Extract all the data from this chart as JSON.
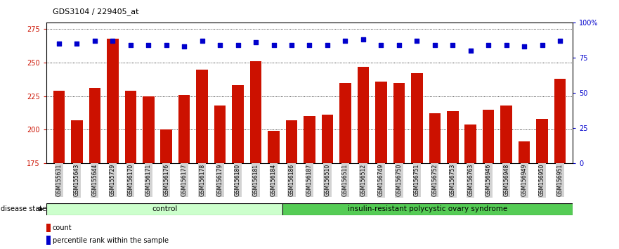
{
  "title": "GDS3104 / 229405_at",
  "samples": [
    "GSM155631",
    "GSM155643",
    "GSM155644",
    "GSM155729",
    "GSM156170",
    "GSM156171",
    "GSM156176",
    "GSM156177",
    "GSM156178",
    "GSM156179",
    "GSM156180",
    "GSM156181",
    "GSM156184",
    "GSM156186",
    "GSM156187",
    "GSM156510",
    "GSM156511",
    "GSM156512",
    "GSM156749",
    "GSM156750",
    "GSM156751",
    "GSM156752",
    "GSM156753",
    "GSM156763",
    "GSM156946",
    "GSM156948",
    "GSM156949",
    "GSM156950",
    "GSM156951"
  ],
  "counts": [
    229,
    207,
    231,
    268,
    229,
    225,
    200,
    226,
    245,
    218,
    233,
    251,
    199,
    207,
    210,
    211,
    235,
    247,
    236,
    235,
    242,
    212,
    214,
    204,
    215,
    218,
    191,
    208,
    238
  ],
  "percentiles": [
    85,
    85,
    87,
    87,
    84,
    84,
    84,
    83,
    87,
    84,
    84,
    86,
    84,
    84,
    84,
    84,
    87,
    88,
    84,
    84,
    87,
    84,
    84,
    80,
    84,
    84,
    83,
    84,
    87
  ],
  "control_count": 13,
  "bar_color": "#cc1100",
  "dot_color": "#0000cc",
  "left_ylim": [
    175,
    280
  ],
  "right_ylim": [
    0,
    100
  ],
  "left_yticks": [
    175,
    200,
    225,
    250,
    275
  ],
  "right_yticks": [
    0,
    25,
    50,
    75,
    100
  ],
  "right_yticklabels": [
    "0",
    "25",
    "50",
    "75",
    "100%"
  ],
  "control_label": "control",
  "disease_label": "insulin-resistant polycystic ovary syndrome",
  "legend_count_label": "count",
  "legend_pct_label": "percentile rank within the sample",
  "disease_state_label": "disease state",
  "bg_color": "#ffffff",
  "label_box_color": "#d3d3d3",
  "control_box_color": "#ccffcc",
  "disease_box_color": "#55cc55"
}
